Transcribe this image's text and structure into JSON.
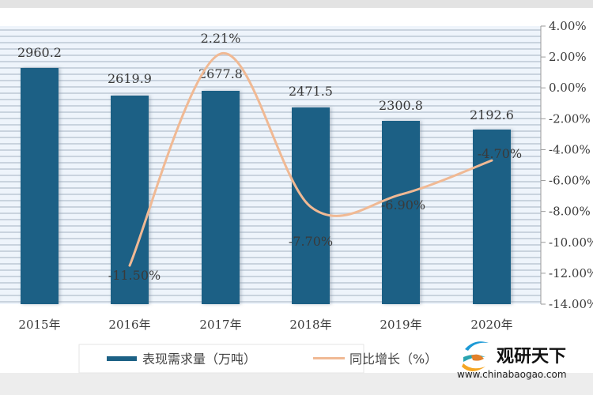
{
  "chart_data": {
    "type": "bar",
    "title": "",
    "categories": [
      "2015年",
      "2016年",
      "2017年",
      "2018年",
      "2019年",
      "2020年"
    ],
    "series": [
      {
        "name": "表现需求量（万吨）",
        "type": "bar",
        "axis": "left",
        "color": "#1c6185",
        "values": [
          2960.2,
          2619.9,
          2677.8,
          2471.5,
          2300.8,
          2192.6
        ],
        "labels": [
          "2960.2",
          "2619.9",
          "2677.8",
          "2471.5",
          "2300.8",
          "2192.6"
        ]
      },
      {
        "name": "同比增长（%）",
        "type": "line",
        "axis": "right",
        "color": "#f0b994",
        "values": [
          null,
          -11.5,
          2.21,
          -7.7,
          -6.9,
          -4.7
        ],
        "labels": [
          "",
          "-11.50%",
          "2.21%",
          "-7.70%",
          "-6.90%",
          "-4.70%"
        ]
      }
    ],
    "xlabel": "",
    "ylabel_left": "",
    "ylabel_right": "",
    "y2lim": [
      -14,
      4
    ],
    "y2ticks": [
      "4.00%",
      "2.00%",
      "0.00%",
      "-2.00%",
      "-4.00%",
      "-6.00%",
      "-8.00%",
      "-10.00%",
      "-12.00%",
      "-14.00%"
    ],
    "grid": true,
    "legend_position": "bottom"
  },
  "legend": {
    "bar_label": "表现需求量（万吨）",
    "line_label": "同比增长（%）"
  },
  "watermark": {
    "name_cn": "观研天下",
    "url": "www.chinabaogao.com"
  }
}
